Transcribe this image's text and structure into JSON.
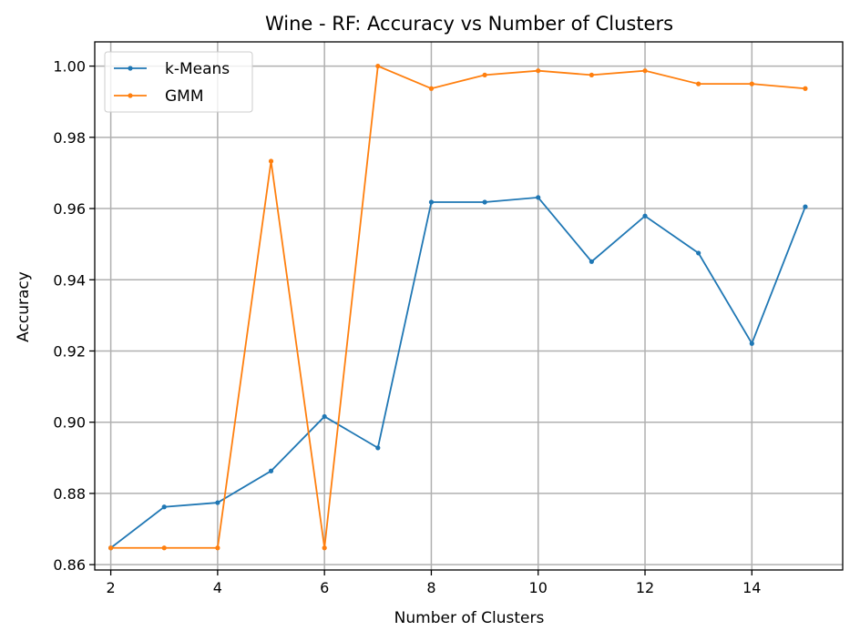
{
  "chart_data": {
    "type": "line",
    "title": "Wine - RF: Accuracy vs Number of Clusters",
    "xlabel": "Number of Clusters",
    "ylabel": "Accuracy",
    "xlim": [
      1.7,
      15.7
    ],
    "ylim": [
      0.8585,
      1.0068
    ],
    "xticks": [
      2,
      4,
      6,
      8,
      10,
      12,
      14
    ],
    "yticks": [
      0.86,
      0.88,
      0.9,
      0.92,
      0.94,
      0.96,
      0.98,
      1.0
    ],
    "ytick_labels": [
      "0.86",
      "0.88",
      "0.90",
      "0.92",
      "0.94",
      "0.96",
      "0.98",
      "1.00"
    ],
    "grid": true,
    "legend_position": "top-left",
    "x": [
      2,
      3,
      4,
      5,
      6,
      7,
      8,
      9,
      10,
      11,
      12,
      13,
      14,
      15
    ],
    "series": [
      {
        "name": "k-Means",
        "color": "#1f77b4",
        "values": [
          0.8647,
          0.8762,
          0.8774,
          0.8863,
          0.9016,
          0.8928,
          0.9618,
          0.9618,
          0.9631,
          0.9451,
          0.9579,
          0.9475,
          0.9221,
          0.9605
        ]
      },
      {
        "name": "GMM",
        "color": "#ff7f0e",
        "values": [
          0.8647,
          0.8647,
          0.8647,
          0.9733,
          0.8647,
          1.0,
          0.9937,
          0.9975,
          0.9987,
          0.9975,
          0.9987,
          0.995,
          0.995,
          0.9937
        ]
      }
    ]
  }
}
